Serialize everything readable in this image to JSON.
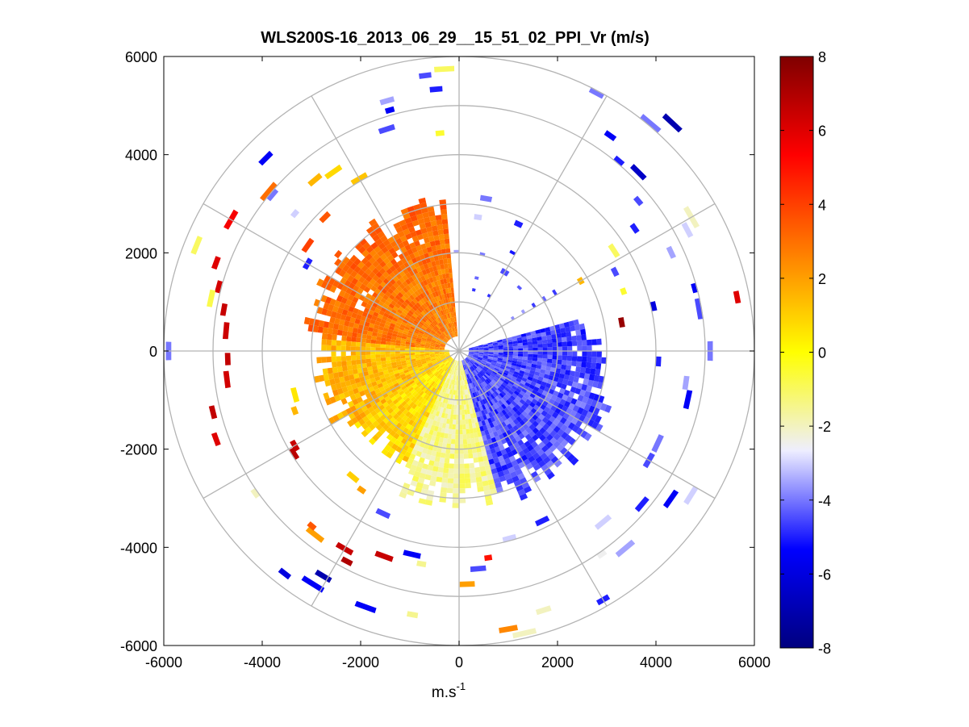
{
  "chart_data": {
    "type": "heatmap",
    "subtype": "polar-ppi",
    "title": "WLS200S-16_2013_06_29__15_51_02_PPI_Vr (m/s)",
    "xlabel": "m.s",
    "xlabel_exponent": "-1",
    "ylabel": "",
    "xlim": [
      -6000,
      6000
    ],
    "ylim": [
      -6000,
      6000
    ],
    "x_ticks": [
      -6000,
      -4000,
      -2000,
      0,
      2000,
      4000,
      6000
    ],
    "y_ticks": [
      -6000,
      -4000,
      -2000,
      0,
      2000,
      4000,
      6000
    ],
    "x_tick_labels": [
      "-6000",
      "-4000",
      "-2000",
      "0",
      "2000",
      "4000",
      "6000"
    ],
    "y_tick_labels": [
      "-6000",
      "-4000",
      "-2000",
      "0",
      "2000",
      "4000",
      "6000"
    ],
    "range_rings": [
      1000,
      2000,
      3000,
      4000,
      5000,
      6000
    ],
    "spoke_angles_deg": [
      0,
      30,
      60,
      90,
      120,
      150,
      180,
      210,
      240,
      270,
      300,
      330
    ],
    "colorbar": {
      "range": [
        -8,
        8
      ],
      "ticks": [
        8,
        6,
        4,
        2,
        0,
        -2,
        -4,
        -6,
        -8
      ],
      "tick_labels": [
        "8",
        "6",
        "4",
        "2",
        "0",
        "-2",
        "-4",
        "-6",
        "-8"
      ],
      "stops": [
        "#00007f",
        "#0000ff",
        "#eeeeff",
        "#ffff00",
        "#ff7f00",
        "#ff0000",
        "#7f0000"
      ]
    },
    "radial_velocity_field": {
      "description": "Dense PPI scan: positive radial velocity (warm) on west/north-west sector, negative (blue) on east/south-east sector, sparse outer returns",
      "dense_max_range_m": 3300,
      "sectors": [
        {
          "from_deg": 95,
          "to_deg": 175,
          "vr": 2.5,
          "range_m": [
            300,
            3200
          ]
        },
        {
          "from_deg": 175,
          "to_deg": 215,
          "vr": 1.0,
          "range_m": [
            200,
            3000
          ]
        },
        {
          "from_deg": 215,
          "to_deg": 245,
          "vr": 0.4,
          "range_m": [
            200,
            2600
          ]
        },
        {
          "from_deg": 245,
          "to_deg": 285,
          "vr": -1.5,
          "range_m": [
            200,
            3200
          ]
        },
        {
          "from_deg": 285,
          "to_deg": 350,
          "vr": -4.5,
          "range_m": [
            200,
            3300
          ]
        },
        {
          "from_deg": 350,
          "to_deg": 375,
          "vr": -4.6,
          "range_m": [
            200,
            3000
          ]
        }
      ],
      "scattered_cells": [
        {
          "r": 5200,
          "az": 160,
          "vr": 6.0
        },
        {
          "r": 5000,
          "az": 165,
          "vr": 6.2
        },
        {
          "r": 4800,
          "az": 170,
          "vr": 6.5
        },
        {
          "r": 4700,
          "az": 175,
          "vr": 6.4
        },
        {
          "r": 4650,
          "az": 182,
          "vr": 6.6
        },
        {
          "r": 4700,
          "az": 187,
          "vr": 6.3
        },
        {
          "r": 5300,
          "az": 150,
          "vr": 5.5
        },
        {
          "r": 5000,
          "az": 140,
          "vr": 3.0
        },
        {
          "r": 4500,
          "az": 130,
          "vr": 1.5
        },
        {
          "r": 4400,
          "az": 125,
          "vr": 0.8
        },
        {
          "r": 4000,
          "az": 120,
          "vr": 1.2
        },
        {
          "r": 3800,
          "az": 135,
          "vr": 3.5
        },
        {
          "r": 3700,
          "az": 145,
          "vr": 4.0
        },
        {
          "r": 5500,
          "az": 135,
          "vr": -5.5
        },
        {
          "r": 5700,
          "az": 158,
          "vr": -1.0
        },
        {
          "r": 5850,
          "az": 180,
          "vr": -4.0
        },
        {
          "r": 5100,
          "az": 168,
          "vr": -0.8
        },
        {
          "r": 4900,
          "az": 140,
          "vr": -4.0
        },
        {
          "r": 4300,
          "az": 140,
          "vr": -3.0
        },
        {
          "r": 3500,
          "az": 150,
          "vr": -5.0
        },
        {
          "r": 5600,
          "az": 97,
          "vr": -4.5
        },
        {
          "r": 5700,
          "az": 93,
          "vr": -1.0
        },
        {
          "r": 5300,
          "az": 95,
          "vr": -5.0
        },
        {
          "r": 5250,
          "az": 106,
          "vr": -3.5
        },
        {
          "r": 5050,
          "az": 106,
          "vr": -5.5
        },
        {
          "r": 4700,
          "az": 108,
          "vr": -4.5
        },
        {
          "r": 4400,
          "az": 95,
          "vr": -0.5
        },
        {
          "r": 3100,
          "az": 80,
          "vr": -4.0
        },
        {
          "r": 2700,
          "az": 82,
          "vr": -3.0
        },
        {
          "r": 2800,
          "az": 65,
          "vr": -5.0
        },
        {
          "r": 1800,
          "az": 60,
          "vr": -4.5
        },
        {
          "r": 5900,
          "az": 62,
          "vr": -4.0
        },
        {
          "r": 5300,
          "az": 55,
          "vr": -5.5
        },
        {
          "r": 5100,
          "az": 45,
          "vr": -6.5
        },
        {
          "r": 5000,
          "az": 50,
          "vr": -5.0
        },
        {
          "r": 4700,
          "az": 40,
          "vr": -4.5
        },
        {
          "r": 4300,
          "az": 35,
          "vr": -5.0
        },
        {
          "r": 3700,
          "az": 33,
          "vr": -1.0
        },
        {
          "r": 3500,
          "az": 27,
          "vr": -4.5
        },
        {
          "r": 3500,
          "az": 20,
          "vr": -0.5
        },
        {
          "r": 6300,
          "az": 47,
          "vr": -7.0
        },
        {
          "r": 6000,
          "az": 50,
          "vr": -4.0
        },
        {
          "r": 5400,
          "az": 30,
          "vr": -2.0
        },
        {
          "r": 4700,
          "az": 25,
          "vr": -3.5
        },
        {
          "r": 4000,
          "az": 13,
          "vr": -6.0
        },
        {
          "r": 2800,
          "az": 30,
          "vr": 1.5
        },
        {
          "r": 5200,
          "az": 28,
          "vr": -3.0
        },
        {
          "r": 3300,
          "az": 10,
          "vr": 7.5
        },
        {
          "r": 4000,
          "az": -3,
          "vr": -5.0
        },
        {
          "r": 4600,
          "az": -8,
          "vr": -3.5
        },
        {
          "r": 4900,
          "az": 15,
          "vr": -5.5
        },
        {
          "r": 4900,
          "az": 10,
          "vr": -4.5
        },
        {
          "r": 5700,
          "az": 11,
          "vr": 6.0
        },
        {
          "r": 5050,
          "az": 0,
          "vr": -4.0
        },
        {
          "r": 4700,
          "az": -12,
          "vr": -5.5
        },
        {
          "r": 4400,
          "az": -25,
          "vr": -4.0
        },
        {
          "r": 4400,
          "az": -30,
          "vr": -4.5
        },
        {
          "r": 4800,
          "az": -40,
          "vr": -5.0
        },
        {
          "r": 5200,
          "az": -35,
          "vr": -5.5
        },
        {
          "r": 5500,
          "az": -32,
          "vr": -3.0
        },
        {
          "r": 4500,
          "az": -50,
          "vr": -3.0
        },
        {
          "r": 5200,
          "az": -50,
          "vr": -3.5
        },
        {
          "r": 5000,
          "az": -55,
          "vr": -2.5
        },
        {
          "r": 5800,
          "az": -60,
          "vr": -5.0
        },
        {
          "r": 5500,
          "az": -72,
          "vr": -2.0
        },
        {
          "r": 3800,
          "az": -64,
          "vr": -5.0
        },
        {
          "r": 3900,
          "az": -75,
          "vr": -3.0
        },
        {
          "r": 4200,
          "az": -82,
          "vr": 5.0
        },
        {
          "r": 4400,
          "az": -85,
          "vr": -4.5
        },
        {
          "r": 4700,
          "az": -88,
          "vr": 2.0
        },
        {
          "r": 5700,
          "az": -80,
          "vr": 2.5
        },
        {
          "r": 5850,
          "az": -77,
          "vr": -2.0
        },
        {
          "r": 4350,
          "az": -100,
          "vr": -1.5
        },
        {
          "r": 4200,
          "az": -103,
          "vr": -5.5
        },
        {
          "r": 4400,
          "az": -110,
          "vr": 6.5
        },
        {
          "r": 5400,
          "az": -100,
          "vr": -1.5
        },
        {
          "r": 5500,
          "az": -110,
          "vr": -5.5
        },
        {
          "r": 4600,
          "az": -120,
          "vr": 6.5
        },
        {
          "r": 4800,
          "az": -118,
          "vr": 7.0
        },
        {
          "r": 4700,
          "az": -128,
          "vr": 2.0
        },
        {
          "r": 4600,
          "az": -130,
          "vr": 3.5
        },
        {
          "r": 5700,
          "az": -128,
          "vr": -6.0
        },
        {
          "r": 5550,
          "az": -122,
          "vr": -5.5
        },
        {
          "r": 5300,
          "az": -121,
          "vr": -7.0
        },
        {
          "r": 3600,
          "az": -115,
          "vr": -4.5
        },
        {
          "r": 3400,
          "az": -125,
          "vr": 2.0
        },
        {
          "r": 3900,
          "az": -148,
          "vr": 6.8
        },
        {
          "r": 3800,
          "az": -150,
          "vr": 6.5
        },
        {
          "r": 3300,
          "az": -130,
          "vr": 1.0
        },
        {
          "r": 5000,
          "az": -145,
          "vr": -2.0
        },
        {
          "r": 5200,
          "az": -160,
          "vr": 6.0
        },
        {
          "r": 5100,
          "az": -166,
          "vr": 6.6
        },
        {
          "r": 3500,
          "az": -160,
          "vr": 1.5
        },
        {
          "r": 3400,
          "az": -165,
          "vr": 0.5
        }
      ]
    }
  }
}
